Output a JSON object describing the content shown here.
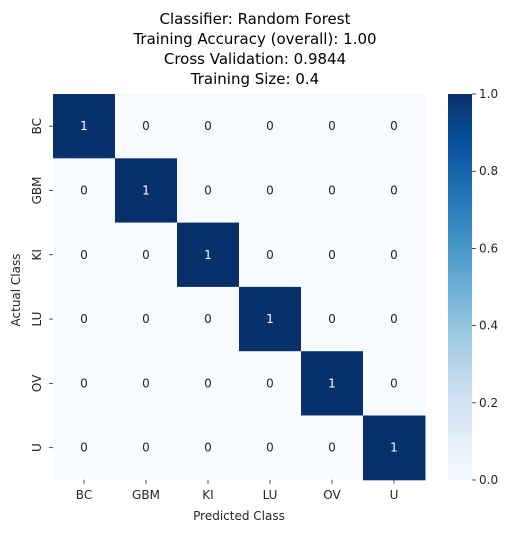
{
  "chart_data": {
    "type": "heatmap",
    "title_lines": [
      "Classifier: Random Forest",
      "Training Accuracy (overall): 1.00",
      "Cross Validation: 0.9844",
      "Training Size: 0.4"
    ],
    "xlabel": "Predicted Class",
    "ylabel": "Actual Class",
    "x_categories": [
      "BC",
      "GBM",
      "KI",
      "LU",
      "OV",
      "U"
    ],
    "y_categories": [
      "BC",
      "GBM",
      "KI",
      "LU",
      "OV",
      "U"
    ],
    "values": [
      [
        1,
        0,
        0,
        0,
        0,
        0
      ],
      [
        0,
        1,
        0,
        0,
        0,
        0
      ],
      [
        0,
        0,
        1,
        0,
        0,
        0
      ],
      [
        0,
        0,
        0,
        1,
        0,
        0
      ],
      [
        0,
        0,
        0,
        0,
        1,
        0
      ],
      [
        0,
        0,
        0,
        0,
        0,
        1
      ]
    ],
    "colorbar": {
      "range": [
        0.0,
        1.0
      ],
      "ticks": [
        "0.0",
        "0.2",
        "0.4",
        "0.6",
        "0.8",
        "1.0"
      ]
    },
    "colors": {
      "low": "#f7fbff",
      "high": "#08306b",
      "label_on_dark": "#ffffff",
      "label_on_light": "#262626"
    }
  }
}
